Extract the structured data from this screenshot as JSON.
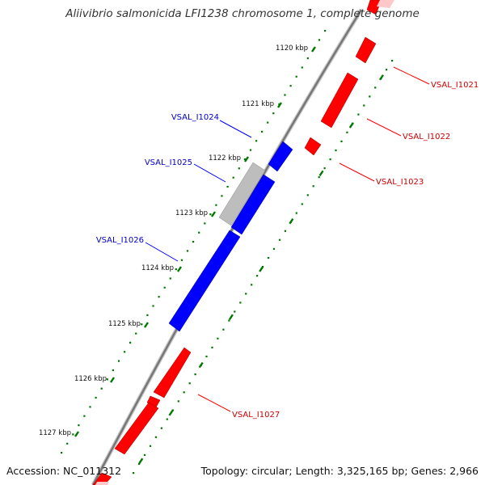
{
  "title": "Aliivibrio salmonicida LFI1238 chromosome 1, complete genome",
  "accession_text": "Accession: NC_011312",
  "summary_text": "Topology: circular; Length: 3,325,165 bp; Genes: 2,966",
  "colors": {
    "forward_strand": "#ff0000",
    "reverse_strand": "#0000ff",
    "pseudo_gene": "#c0c0c0",
    "backbone": "#888888",
    "tick_marks": "#007700",
    "forward_label": "#cc0000",
    "reverse_label": "#0000cc"
  },
  "ticks": [
    {
      "label": "1120 kbp"
    },
    {
      "label": "1121 kbp"
    },
    {
      "label": "1122 kbp"
    },
    {
      "label": "1123 kbp"
    },
    {
      "label": "1124 kbp"
    },
    {
      "label": "1125 kbp"
    },
    {
      "label": "1126 kbp"
    },
    {
      "label": "1127 kbp"
    }
  ],
  "gene_labels": {
    "VSAL_I1021": "VSAL_I1021",
    "VSAL_I1022": "VSAL_I1022",
    "VSAL_I1023": "VSAL_I1023",
    "VSAL_I1024": "VSAL_I1024",
    "VSAL_I1025": "VSAL_I1025",
    "VSAL_I1026": "VSAL_I1026",
    "VSAL_I1027": "VSAL_I1027"
  }
}
